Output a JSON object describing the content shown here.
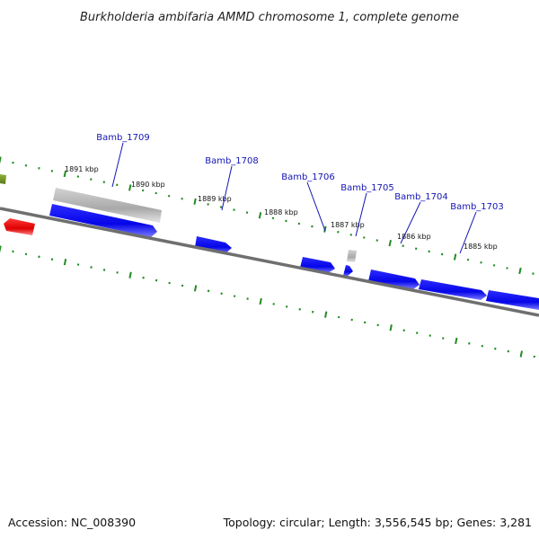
{
  "title": "Burkholderia ambifaria AMMD chromosome 1, complete genome",
  "footer": {
    "accession": "Accession: NC_008390",
    "summary": "Topology: circular; Length: 3,556,545 bp; Genes: 3,281"
  },
  "scale_labels": [
    "1891 kbp",
    "1890 kbp",
    "1889 kbp",
    "1888 kbp",
    "1887 kbp",
    "1886 kbp",
    "1885 kbp"
  ],
  "gene_labels": [
    "Bamb_1709",
    "Bamb_1708",
    "Bamb_1706",
    "Bamb_1705",
    "Bamb_1704",
    "Bamb_1703"
  ],
  "colors": {
    "backbone": "#777777",
    "forward_gene": "#0a0aee",
    "reverse_gene": "#e01010",
    "pseudogene": "#b8b8b8",
    "other_feature": "#6b8e23",
    "tick": "#228b22",
    "label": "#1414b4"
  }
}
